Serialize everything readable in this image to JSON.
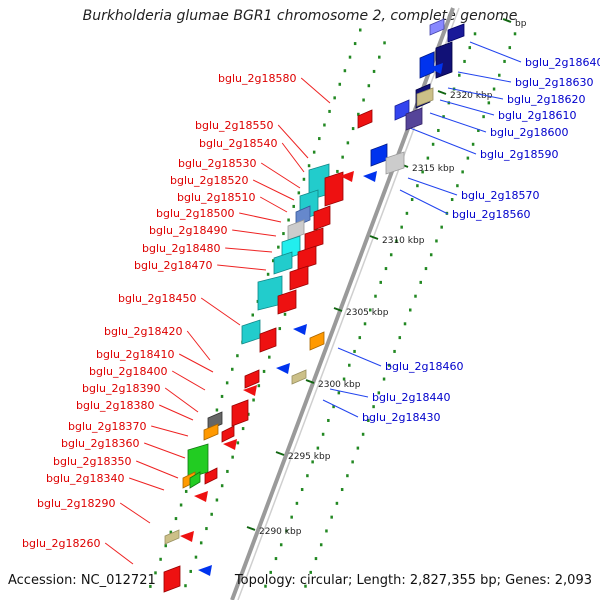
{
  "title": "Burkholderia glumae BGR1 chromosome 2, complete genome",
  "footer": {
    "accession": "Accession: NC_012721",
    "summary": "Topology: circular; Length: 2,827,355 bp; Genes: 2,093"
  },
  "colors": {
    "backbone": "#888888",
    "forward_label": "#dd0000",
    "reverse_label": "#0000cc",
    "tick": "#228822"
  },
  "ticks": [
    "bp",
    "2320 kbp",
    "2315 kbp",
    "2310 kbp",
    "2305 kbp",
    "2300 kbp",
    "2295 kbp",
    "2290 kbp"
  ],
  "forward_labels": [
    "bglu_2g18580",
    "bglu_2g18550",
    "bglu_2g18540",
    "bglu_2g18530",
    "bglu_2g18520",
    "bglu_2g18510",
    "bglu_2g18500",
    "bglu_2g18490",
    "bglu_2g18480",
    "bglu_2g18470",
    "bglu_2g18450",
    "bglu_2g18420",
    "bglu_2g18410",
    "bglu_2g18400",
    "bglu_2g18390",
    "bglu_2g18380",
    "bglu_2g18370",
    "bglu_2g18360",
    "bglu_2g18350",
    "bglu_2g18340",
    "bglu_2g18290",
    "bglu_2g18260"
  ],
  "reverse_labels": [
    "bglu_2g18640",
    "bglu_2g18630",
    "bglu_2g18620",
    "bglu_2g18610",
    "bglu_2g18600",
    "bglu_2g18590",
    "bglu_2g18570",
    "bglu_2g18560",
    "bglu_2g18460",
    "bglu_2g18440",
    "bglu_2g18430"
  ]
}
